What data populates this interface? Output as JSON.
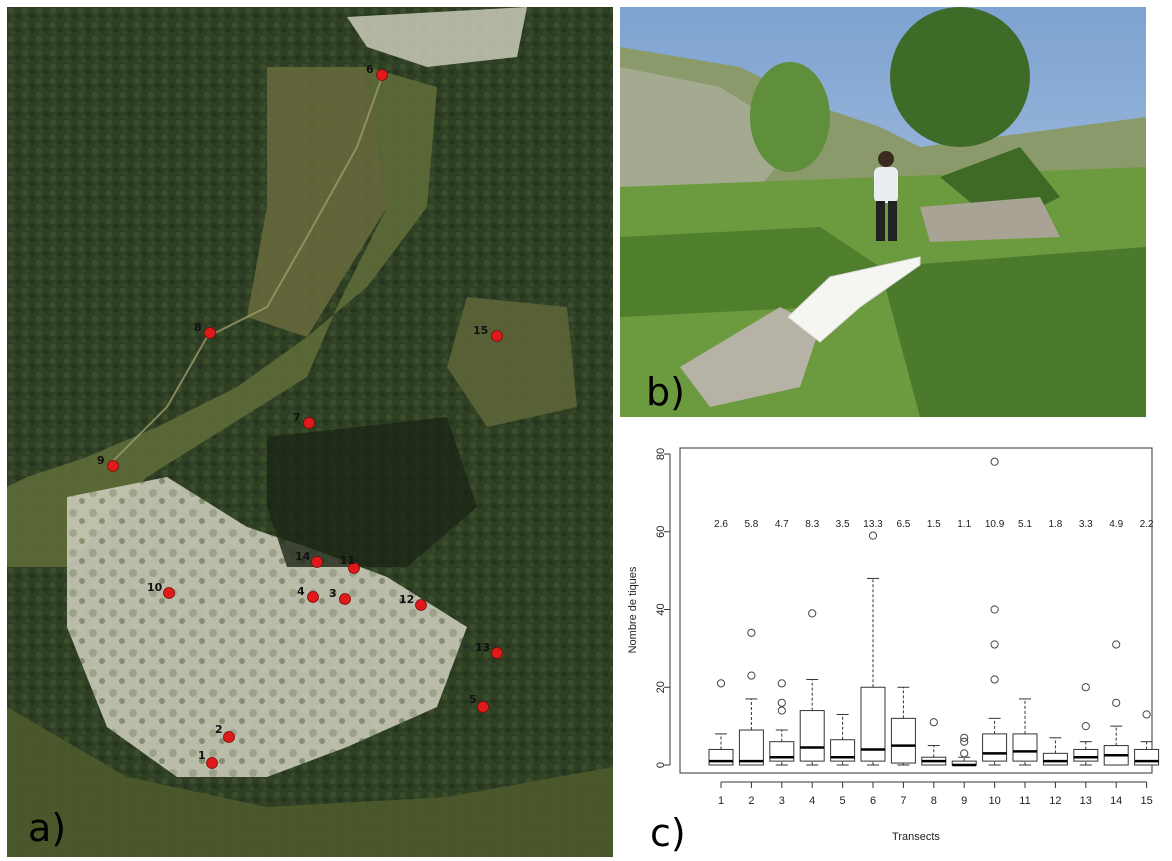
{
  "figure": {
    "panel_labels": {
      "a": "a)",
      "b": "b)",
      "c": "c)"
    }
  },
  "map": {
    "sites": [
      "1",
      "2",
      "3",
      "4",
      "5",
      "6",
      "7",
      "8",
      "9",
      "10",
      "11",
      "12",
      "13",
      "14",
      "15"
    ],
    "marker_color": "#e01a1a"
  },
  "photo": {
    "sky_color": "#8fb2d8",
    "vegetation_color": "#5a8a38"
  },
  "chart_data": {
    "type": "box",
    "xlabel": "Transects",
    "ylabel": "Nombre de tiques",
    "ylim": [
      0,
      80
    ],
    "yticks": [
      0,
      20,
      40,
      60,
      80
    ],
    "categories": [
      "1",
      "2",
      "3",
      "4",
      "5",
      "6",
      "7",
      "8",
      "9",
      "10",
      "11",
      "12",
      "13",
      "14",
      "15"
    ],
    "means": [
      "2.6",
      "5.8",
      "4.7",
      "8.3",
      "3.5",
      "13.3",
      "6.5",
      "1.5",
      "1.1",
      "10.9",
      "5.1",
      "1.8",
      "3.3",
      "4.9",
      "2.2"
    ],
    "boxes": [
      {
        "min": 0,
        "q1": 0,
        "median": 1,
        "q3": 4,
        "max": 8,
        "outliers": [
          21
        ]
      },
      {
        "min": 0,
        "q1": 0,
        "median": 1,
        "q3": 9,
        "max": 17,
        "outliers": [
          23,
          34
        ]
      },
      {
        "min": 0,
        "q1": 1,
        "median": 2,
        "q3": 6,
        "max": 9,
        "outliers": [
          14,
          16,
          21
        ]
      },
      {
        "min": 0,
        "q1": 1,
        "median": 4.5,
        "q3": 14,
        "max": 22,
        "outliers": [
          39
        ]
      },
      {
        "min": 0,
        "q1": 1,
        "median": 2,
        "q3": 6.5,
        "max": 13,
        "outliers": []
      },
      {
        "min": 0,
        "q1": 1,
        "median": 4,
        "q3": 20,
        "max": 48,
        "outliers": [
          59
        ]
      },
      {
        "min": 0,
        "q1": 0.5,
        "median": 5,
        "q3": 12,
        "max": 20,
        "outliers": []
      },
      {
        "min": 0,
        "q1": 0,
        "median": 1,
        "q3": 2,
        "max": 5,
        "outliers": [
          11
        ]
      },
      {
        "min": 0,
        "q1": 0,
        "median": 0,
        "q3": 1,
        "max": 2,
        "outliers": [
          3,
          6,
          7
        ]
      },
      {
        "min": 0,
        "q1": 1,
        "median": 3,
        "q3": 8,
        "max": 12,
        "outliers": [
          22,
          31,
          40,
          78
        ]
      },
      {
        "min": 0,
        "q1": 1,
        "median": 3.5,
        "q3": 8,
        "max": 17,
        "outliers": []
      },
      {
        "min": 0,
        "q1": 0,
        "median": 1,
        "q3": 3,
        "max": 7,
        "outliers": []
      },
      {
        "min": 0,
        "q1": 1,
        "median": 2,
        "q3": 4,
        "max": 6,
        "outliers": [
          10,
          20
        ]
      },
      {
        "min": 0,
        "q1": 0,
        "median": 2.5,
        "q3": 5,
        "max": 10,
        "outliers": [
          16,
          31
        ]
      },
      {
        "min": 0,
        "q1": 0,
        "median": 1,
        "q3": 4,
        "max": 6,
        "outliers": [
          13
        ]
      }
    ]
  }
}
